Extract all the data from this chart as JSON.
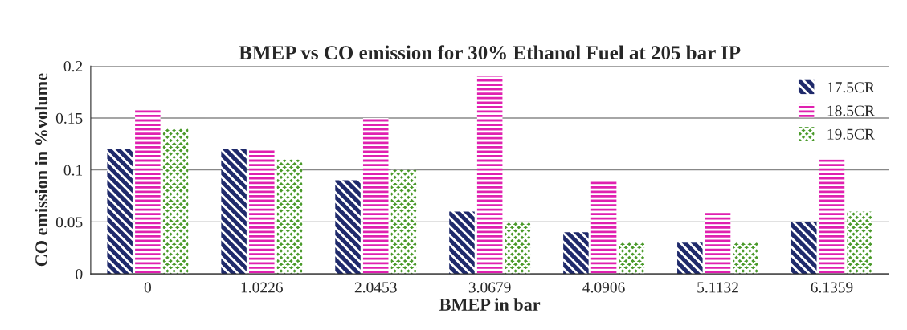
{
  "chart_data": {
    "type": "bar",
    "title": "BMEP vs CO emission for 30% Ethanol Fuel at 205 bar IP",
    "xlabel": "BMEP in bar",
    "ylabel": "CO emission in %volume",
    "categories": [
      "0",
      "1.0226",
      "2.0453",
      "3.0679",
      "4.0906",
      "5.1132",
      "6.1359"
    ],
    "series": [
      {
        "name": "17.5CR",
        "color": "#1f2a6b",
        "values": [
          0.12,
          0.12,
          0.09,
          0.06,
          0.04,
          0.03,
          0.05
        ]
      },
      {
        "name": "18.5CR",
        "color": "#e020b0",
        "values": [
          0.16,
          0.12,
          0.15,
          0.19,
          0.09,
          0.06,
          0.11
        ]
      },
      {
        "name": "19.5CR",
        "color": "#4a9a2a",
        "values": [
          0.14,
          0.11,
          0.1,
          0.05,
          0.03,
          0.03,
          0.06
        ]
      }
    ],
    "ylim": [
      0,
      0.2
    ],
    "yticks": [
      0,
      0.05,
      0.1,
      0.15,
      0.2
    ],
    "grid": "y",
    "legend": "top right"
  }
}
